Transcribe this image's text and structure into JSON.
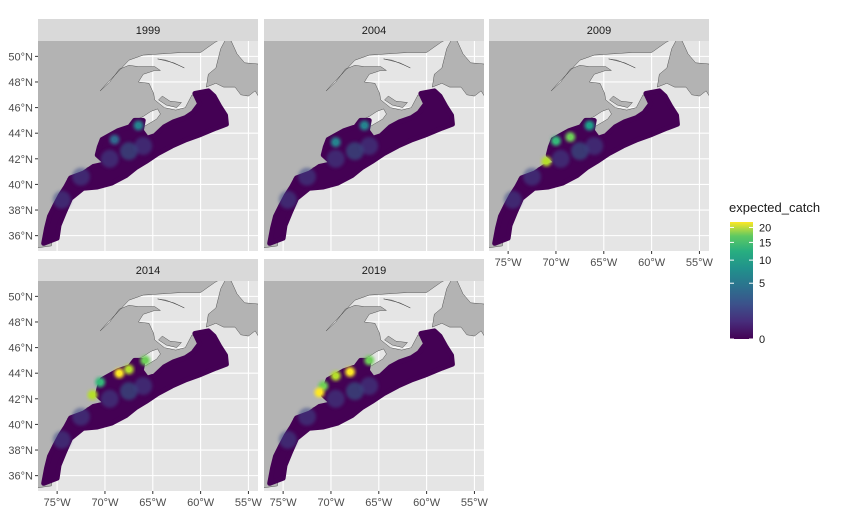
{
  "chart_data": {
    "type": "heatmap",
    "facet_variable": "year",
    "panels": [
      {
        "label": "1999",
        "hotspots": [
          {
            "lon": -66.5,
            "lat": 44.6,
            "value": 4
          },
          {
            "lon": -69.0,
            "lat": 43.5,
            "value": 3
          }
        ]
      },
      {
        "label": "2004",
        "hotspots": [
          {
            "lon": -66.5,
            "lat": 44.6,
            "value": 5
          },
          {
            "lon": -69.5,
            "lat": 43.3,
            "value": 4
          }
        ]
      },
      {
        "label": "2009",
        "hotspots": [
          {
            "lon": -68.5,
            "lat": 43.7,
            "value": 12
          },
          {
            "lon": -70.0,
            "lat": 43.4,
            "value": 9
          },
          {
            "lon": -71.0,
            "lat": 41.8,
            "value": 18
          },
          {
            "lon": -66.5,
            "lat": 44.6,
            "value": 8
          }
        ]
      },
      {
        "label": "2014",
        "hotspots": [
          {
            "lon": -68.5,
            "lat": 44.0,
            "value": 20
          },
          {
            "lon": -67.5,
            "lat": 44.3,
            "value": 16
          },
          {
            "lon": -70.5,
            "lat": 43.3,
            "value": 10
          },
          {
            "lon": -65.8,
            "lat": 45.0,
            "value": 12
          },
          {
            "lon": -71.3,
            "lat": 42.3,
            "value": 18
          }
        ]
      },
      {
        "label": "2019",
        "hotspots": [
          {
            "lon": -68.0,
            "lat": 44.1,
            "value": 22
          },
          {
            "lon": -69.5,
            "lat": 43.8,
            "value": 18
          },
          {
            "lon": -70.8,
            "lat": 43.0,
            "value": 12
          },
          {
            "lon": -66.0,
            "lat": 45.0,
            "value": 15
          },
          {
            "lon": -71.2,
            "lat": 42.5,
            "value": 20
          }
        ]
      }
    ],
    "x_axis": {
      "ticks": [
        "75°W",
        "70°W",
        "65°W",
        "60°W",
        "55°W"
      ],
      "tick_values": [
        -75,
        -70,
        -65,
        -60,
        -55
      ],
      "range": [
        -77,
        -54
      ]
    },
    "y_axis": {
      "ticks": [
        "36°N",
        "38°N",
        "40°N",
        "42°N",
        "44°N",
        "46°N",
        "48°N",
        "50°N"
      ],
      "tick_values": [
        36,
        38,
        40,
        42,
        44,
        46,
        48,
        50
      ],
      "range": [
        34.8,
        51.2
      ]
    },
    "legend": {
      "title": "expected_catch",
      "position": "right",
      "breaks": [
        {
          "label": "20",
          "value": 20
        },
        {
          "label": "15",
          "value": 15
        },
        {
          "label": "10",
          "value": 10
        },
        {
          "label": "5",
          "value": 5
        },
        {
          "label": "0",
          "value": 0
        }
      ],
      "colormap": "viridis",
      "scale": "sqrt"
    },
    "colors": {
      "panel_background": "#e5e5e5",
      "land": "#b3b3b3",
      "strip": "#d9d9d9",
      "low": "#440154",
      "high": "#fde725"
    }
  }
}
